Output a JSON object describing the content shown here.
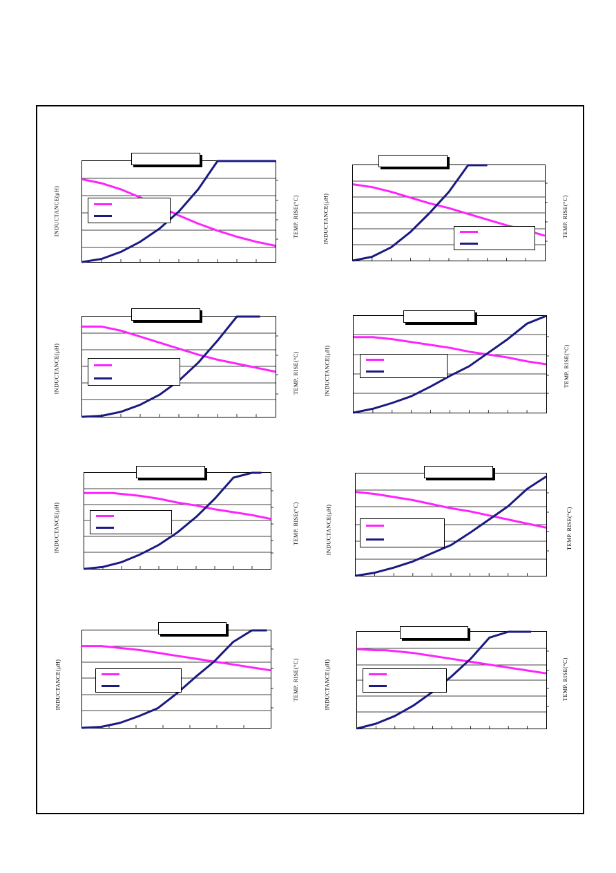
{
  "colors": {
    "inductance": "#ff22ff",
    "temp_rise": "#1a1a80",
    "grid": "#000000"
  },
  "chart_data": [
    {
      "type": "line",
      "title": "",
      "ylabel": "INDUCTANCE(μH)",
      "y2label": "TEMP. RISE(°C)",
      "series": [
        {
          "name": "",
          "values": [
            0.82,
            0.78,
            0.72,
            0.64,
            0.55,
            0.46,
            0.38,
            0.31,
            0.25,
            0.2,
            0.16
          ],
          "x": [
            0,
            0.1,
            0.2,
            0.3,
            0.4,
            0.5,
            0.6,
            0.7,
            0.8,
            0.9,
            1.0
          ]
        },
        {
          "name": "",
          "x": [
            0,
            0.1,
            0.2,
            0.3,
            0.4,
            0.5,
            0.6,
            0.7,
            0.8,
            0.9,
            1.0
          ],
          "values": [
            0,
            0.03,
            0.1,
            0.2,
            0.33,
            0.5,
            0.72,
            1.0,
            1.05,
            1.1,
            1.15
          ]
        }
      ]
    },
    {
      "type": "line",
      "title": "",
      "ylabel": "INDUCTANCE(μH)",
      "y2label": "TEMP. RISE(°C)",
      "series": [
        {
          "name": "",
          "x": [
            0,
            0.1,
            0.2,
            0.3,
            0.4,
            0.5,
            0.6,
            0.7,
            0.8,
            0.9,
            1.0
          ],
          "values": [
            0.8,
            0.77,
            0.72,
            0.66,
            0.6,
            0.55,
            0.49,
            0.43,
            0.37,
            0.32,
            0.26
          ]
        },
        {
          "name": "",
          "x": [
            0,
            0.1,
            0.2,
            0.3,
            0.4,
            0.5,
            0.6,
            0.7
          ],
          "values": [
            0,
            0.04,
            0.14,
            0.3,
            0.5,
            0.72,
            1.02,
            1.1
          ]
        }
      ]
    },
    {
      "type": "line",
      "title": "",
      "ylabel": "INDUCTANCE(μH)",
      "y2label": "TEMP. RISE(°C)",
      "series": [
        {
          "name": "",
          "x": [
            0,
            0.1,
            0.2,
            0.3,
            0.4,
            0.5,
            0.6,
            0.7,
            0.8,
            0.9,
            1.0
          ],
          "values": [
            0.9,
            0.9,
            0.86,
            0.8,
            0.74,
            0.68,
            0.62,
            0.57,
            0.53,
            0.49,
            0.45
          ]
        },
        {
          "name": "",
          "x": [
            0,
            0.1,
            0.2,
            0.3,
            0.4,
            0.5,
            0.6,
            0.7,
            0.8,
            0.9,
            0.92
          ],
          "values": [
            0,
            0.01,
            0.05,
            0.12,
            0.22,
            0.36,
            0.54,
            0.76,
            1.02,
            1.02,
            1.02
          ]
        }
      ]
    },
    {
      "type": "line",
      "title": "",
      "ylabel": "INDUCTANCE(μH)",
      "y2label": "TEMP. RISE(°C)",
      "series": [
        {
          "name": "",
          "x": [
            0,
            0.1,
            0.2,
            0.3,
            0.4,
            0.5,
            0.6,
            0.7,
            0.8,
            0.9,
            1.0
          ],
          "values": [
            0.78,
            0.78,
            0.76,
            0.73,
            0.7,
            0.67,
            0.63,
            0.6,
            0.57,
            0.53,
            0.5
          ]
        },
        {
          "name": "",
          "x": [
            0,
            0.1,
            0.2,
            0.3,
            0.4,
            0.5,
            0.6,
            0.7,
            0.8,
            0.9,
            1.0
          ],
          "values": [
            0,
            0.04,
            0.1,
            0.17,
            0.27,
            0.38,
            0.48,
            0.62,
            0.76,
            0.92,
            1.06
          ]
        }
      ]
    },
    {
      "type": "line",
      "title": "",
      "ylabel": "INDUCTANCE(μH)",
      "y2label": "TEMP. RISE(°C)",
      "series": [
        {
          "name": "",
          "x": [
            0,
            0.1,
            0.15,
            0.3,
            0.4,
            0.5,
            0.6,
            0.7,
            0.8,
            0.9,
            1.0
          ],
          "values": [
            0.79,
            0.79,
            0.79,
            0.76,
            0.73,
            0.69,
            0.66,
            0.62,
            0.59,
            0.56,
            0.52
          ]
        },
        {
          "name": "",
          "x": [
            0,
            0.1,
            0.2,
            0.3,
            0.4,
            0.5,
            0.6,
            0.7,
            0.8,
            0.9,
            0.95
          ],
          "values": [
            0,
            0.02,
            0.07,
            0.15,
            0.25,
            0.38,
            0.54,
            0.73,
            0.95,
            1.05,
            1.05
          ]
        }
      ]
    },
    {
      "type": "line",
      "title": "",
      "ylabel": "INDUCTANCE(μH)",
      "y2label": "TEMP. RISE(°C)",
      "series": [
        {
          "name": "",
          "x": [
            0,
            0.1,
            0.2,
            0.3,
            0.4,
            0.5,
            0.6,
            0.7,
            0.8,
            0.9,
            1.0
          ],
          "values": [
            0.82,
            0.8,
            0.77,
            0.74,
            0.7,
            0.66,
            0.63,
            0.59,
            0.55,
            0.51,
            0.47
          ]
        },
        {
          "name": "",
          "x": [
            0,
            0.1,
            0.2,
            0.3,
            0.4,
            0.5,
            0.6,
            0.7,
            0.8,
            0.9,
            1.0
          ],
          "values": [
            0,
            0.03,
            0.08,
            0.14,
            0.22,
            0.3,
            0.42,
            0.55,
            0.68,
            0.85,
            0.97
          ]
        }
      ]
    },
    {
      "type": "line",
      "title": "",
      "ylabel": "INDUCTANCE(μH)",
      "y2label": "TEMP. RISE(°C)",
      "series": [
        {
          "name": "",
          "x": [
            0,
            0.1,
            0.15,
            0.3,
            0.4,
            0.5,
            0.6,
            0.7,
            0.8,
            0.9,
            1.0
          ],
          "values": [
            0.84,
            0.84,
            0.83,
            0.8,
            0.77,
            0.74,
            0.71,
            0.68,
            0.65,
            0.62,
            0.59
          ]
        },
        {
          "name": "",
          "x": [
            0,
            0.1,
            0.2,
            0.3,
            0.4,
            0.5,
            0.6,
            0.7,
            0.8,
            0.9,
            0.98
          ],
          "values": [
            0,
            0.01,
            0.05,
            0.12,
            0.2,
            0.35,
            0.52,
            0.68,
            0.88,
            1.02,
            1.02
          ]
        }
      ]
    },
    {
      "type": "line",
      "title": "",
      "ylabel": "INDUCTANCE(μH)",
      "y2label": "TEMP. RISE(°C)",
      "series": [
        {
          "name": "",
          "x": [
            0,
            0.1,
            0.15,
            0.3,
            0.4,
            0.5,
            0.6,
            0.7,
            0.8,
            0.9,
            1.0
          ],
          "values": [
            0.82,
            0.81,
            0.81,
            0.78,
            0.75,
            0.72,
            0.69,
            0.66,
            0.63,
            0.6,
            0.57
          ]
        },
        {
          "name": "",
          "x": [
            0,
            0.1,
            0.2,
            0.3,
            0.4,
            0.5,
            0.6,
            0.7,
            0.8,
            0.9,
            0.92
          ],
          "values": [
            0,
            0.05,
            0.13,
            0.24,
            0.38,
            0.54,
            0.72,
            0.94,
            1.02,
            1.02,
            1.02
          ]
        }
      ]
    }
  ]
}
